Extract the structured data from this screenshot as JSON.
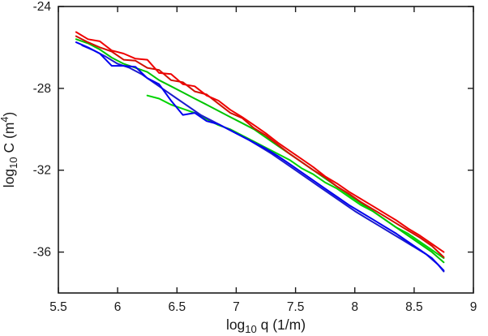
{
  "figure": {
    "background": "#ffffff",
    "frame_color": "#1a1a1a",
    "text_color": "#1a1a1a"
  },
  "chart_data": {
    "type": "line",
    "title": "",
    "xlabel": "log10 q (1/m)",
    "ylabel": "log10 C (m^4)",
    "xlabel_parts": {
      "pre": "log",
      "sub": "10",
      "rest": " q (1/m)"
    },
    "ylabel_parts": {
      "pre": "log",
      "sub": "10",
      "rest": " C (m",
      "sup": "4",
      "post": ")"
    },
    "xlim": [
      5.5,
      9
    ],
    "ylim": [
      -38,
      -24
    ],
    "xticks": [
      5.5,
      6,
      6.5,
      7,
      7.5,
      8,
      8.5,
      9
    ],
    "xtick_labels": [
      "5.5",
      "6",
      "6.5",
      "7",
      "7.5",
      "8",
      "8.5",
      "9"
    ],
    "yticks": [
      -24,
      -28,
      -32,
      -36
    ],
    "ytick_labels": [
      "-24",
      "-28",
      "-32",
      "-36"
    ],
    "grid": false,
    "legend": null,
    "line_width": 2,
    "series": [
      {
        "name": "green-2",
        "color": "#00d400",
        "points": [
          [
            6.25,
            -28.35
          ],
          [
            6.35,
            -28.5
          ],
          [
            6.45,
            -28.8
          ],
          [
            6.55,
            -29.0
          ],
          [
            6.65,
            -29.2
          ],
          [
            6.75,
            -29.5
          ],
          [
            6.85,
            -29.8
          ],
          [
            6.95,
            -30.0
          ],
          [
            7.05,
            -30.3
          ],
          [
            7.15,
            -30.6
          ],
          [
            7.25,
            -30.9
          ],
          [
            7.35,
            -31.2
          ],
          [
            7.45,
            -31.5
          ],
          [
            7.55,
            -31.9
          ],
          [
            7.65,
            -32.2
          ],
          [
            7.75,
            -32.6
          ],
          [
            7.85,
            -32.9
          ],
          [
            7.95,
            -33.3
          ],
          [
            8.05,
            -33.7
          ],
          [
            8.15,
            -34.0
          ],
          [
            8.25,
            -34.4
          ],
          [
            8.35,
            -34.8
          ],
          [
            8.45,
            -35.1
          ],
          [
            8.55,
            -35.5
          ],
          [
            8.65,
            -35.9
          ],
          [
            8.75,
            -36.3
          ]
        ]
      },
      {
        "name": "blue-2",
        "color": "#1a1acd",
        "points": [
          [
            5.7,
            -25.9
          ],
          [
            5.8,
            -26.15
          ],
          [
            5.9,
            -26.45
          ],
          [
            6.0,
            -26.8
          ],
          [
            6.1,
            -27.0
          ],
          [
            6.2,
            -27.3
          ],
          [
            6.3,
            -27.7
          ],
          [
            6.4,
            -28.1
          ],
          [
            6.5,
            -28.5
          ],
          [
            6.6,
            -28.9
          ],
          [
            6.7,
            -29.3
          ],
          [
            6.8,
            -29.6
          ],
          [
            6.9,
            -29.9
          ],
          [
            7.0,
            -30.2
          ],
          [
            7.1,
            -30.5
          ],
          [
            7.2,
            -30.85
          ],
          [
            7.3,
            -31.2
          ],
          [
            7.4,
            -31.6
          ],
          [
            7.5,
            -32.0
          ],
          [
            7.6,
            -32.4
          ],
          [
            7.7,
            -32.8
          ],
          [
            7.8,
            -33.2
          ],
          [
            7.9,
            -33.6
          ],
          [
            8.0,
            -34.0
          ],
          [
            8.1,
            -34.35
          ],
          [
            8.2,
            -34.7
          ],
          [
            8.3,
            -35.05
          ],
          [
            8.4,
            -35.4
          ],
          [
            8.5,
            -35.75
          ],
          [
            8.6,
            -36.1
          ],
          [
            8.7,
            -36.6
          ],
          [
            8.75,
            -36.95
          ]
        ]
      },
      {
        "name": "green-1",
        "color": "#00c400",
        "points": [
          [
            5.65,
            -25.6
          ],
          [
            5.75,
            -25.8
          ],
          [
            5.85,
            -26.1
          ],
          [
            5.95,
            -26.5
          ],
          [
            6.05,
            -26.8
          ],
          [
            6.15,
            -27.0
          ],
          [
            6.25,
            -27.2
          ],
          [
            6.35,
            -27.6
          ],
          [
            6.45,
            -27.9
          ],
          [
            6.55,
            -28.2
          ],
          [
            6.65,
            -28.5
          ],
          [
            6.75,
            -28.8
          ],
          [
            6.85,
            -29.1
          ],
          [
            6.95,
            -29.4
          ],
          [
            7.05,
            -29.7
          ],
          [
            7.15,
            -30.0
          ],
          [
            7.25,
            -30.4
          ],
          [
            7.35,
            -30.8
          ],
          [
            7.45,
            -31.2
          ],
          [
            7.55,
            -31.6
          ],
          [
            7.65,
            -32.0
          ],
          [
            7.75,
            -32.4
          ],
          [
            7.85,
            -32.8
          ],
          [
            7.95,
            -33.2
          ],
          [
            8.05,
            -33.6
          ],
          [
            8.15,
            -34.0
          ],
          [
            8.25,
            -34.4
          ],
          [
            8.35,
            -34.8
          ],
          [
            8.45,
            -35.2
          ],
          [
            8.55,
            -35.6
          ],
          [
            8.65,
            -36.0
          ],
          [
            8.75,
            -36.5
          ]
        ]
      },
      {
        "name": "blue-1",
        "color": "#0000f0",
        "points": [
          [
            5.65,
            -25.75
          ],
          [
            5.75,
            -26.0
          ],
          [
            5.85,
            -26.3
          ],
          [
            5.95,
            -26.9
          ],
          [
            6.05,
            -26.9
          ],
          [
            6.15,
            -26.95
          ],
          [
            6.25,
            -27.5
          ],
          [
            6.35,
            -27.8
          ],
          [
            6.45,
            -28.6
          ],
          [
            6.55,
            -29.3
          ],
          [
            6.65,
            -29.2
          ],
          [
            6.75,
            -29.6
          ],
          [
            6.85,
            -29.75
          ],
          [
            6.95,
            -30.05
          ],
          [
            7.05,
            -30.35
          ],
          [
            7.15,
            -30.65
          ],
          [
            7.25,
            -30.95
          ],
          [
            7.35,
            -31.3
          ],
          [
            7.45,
            -31.7
          ],
          [
            7.55,
            -32.1
          ],
          [
            7.65,
            -32.5
          ],
          [
            7.75,
            -32.9
          ],
          [
            7.85,
            -33.3
          ],
          [
            7.95,
            -33.7
          ],
          [
            8.05,
            -34.05
          ],
          [
            8.15,
            -34.4
          ],
          [
            8.25,
            -34.75
          ],
          [
            8.35,
            -35.1
          ],
          [
            8.45,
            -35.5
          ],
          [
            8.55,
            -35.9
          ],
          [
            8.65,
            -36.3
          ],
          [
            8.75,
            -36.9
          ]
        ]
      },
      {
        "name": "red-2",
        "color": "#d01000",
        "points": [
          [
            5.65,
            -25.45
          ],
          [
            5.75,
            -25.75
          ],
          [
            5.85,
            -26.0
          ],
          [
            5.95,
            -26.2
          ],
          [
            6.05,
            -26.6
          ],
          [
            6.15,
            -26.65
          ],
          [
            6.25,
            -27.0
          ],
          [
            6.35,
            -27.1
          ],
          [
            6.45,
            -27.6
          ],
          [
            6.55,
            -27.7
          ],
          [
            6.65,
            -28.15
          ],
          [
            6.75,
            -28.3
          ],
          [
            6.85,
            -28.75
          ],
          [
            6.95,
            -29.2
          ],
          [
            7.05,
            -29.45
          ],
          [
            7.15,
            -29.95
          ],
          [
            7.25,
            -30.3
          ],
          [
            7.35,
            -30.75
          ],
          [
            7.45,
            -31.2
          ],
          [
            7.55,
            -31.6
          ],
          [
            7.65,
            -32.0
          ],
          [
            7.75,
            -32.35
          ],
          [
            7.85,
            -32.8
          ],
          [
            7.95,
            -33.15
          ],
          [
            8.05,
            -33.55
          ],
          [
            8.15,
            -33.9
          ],
          [
            8.25,
            -34.25
          ],
          [
            8.35,
            -34.6
          ],
          [
            8.45,
            -34.95
          ],
          [
            8.55,
            -35.3
          ],
          [
            8.65,
            -35.7
          ],
          [
            8.75,
            -36.25
          ]
        ]
      },
      {
        "name": "red-1",
        "color": "#f00000",
        "points": [
          [
            5.65,
            -25.25
          ],
          [
            5.75,
            -25.6
          ],
          [
            5.85,
            -25.7
          ],
          [
            5.95,
            -26.15
          ],
          [
            6.05,
            -26.3
          ],
          [
            6.15,
            -26.55
          ],
          [
            6.25,
            -26.6
          ],
          [
            6.35,
            -27.25
          ],
          [
            6.45,
            -27.3
          ],
          [
            6.55,
            -27.8
          ],
          [
            6.65,
            -27.9
          ],
          [
            6.75,
            -28.35
          ],
          [
            6.85,
            -28.6
          ],
          [
            6.95,
            -29.05
          ],
          [
            7.05,
            -29.4
          ],
          [
            7.15,
            -29.8
          ],
          [
            7.25,
            -30.2
          ],
          [
            7.35,
            -30.65
          ],
          [
            7.45,
            -31.05
          ],
          [
            7.55,
            -31.45
          ],
          [
            7.65,
            -31.85
          ],
          [
            7.75,
            -32.3
          ],
          [
            7.85,
            -32.65
          ],
          [
            7.95,
            -33.05
          ],
          [
            8.05,
            -33.4
          ],
          [
            8.15,
            -33.75
          ],
          [
            8.25,
            -34.1
          ],
          [
            8.35,
            -34.45
          ],
          [
            8.45,
            -34.85
          ],
          [
            8.55,
            -35.2
          ],
          [
            8.65,
            -35.6
          ],
          [
            8.75,
            -36.0
          ]
        ]
      }
    ]
  }
}
